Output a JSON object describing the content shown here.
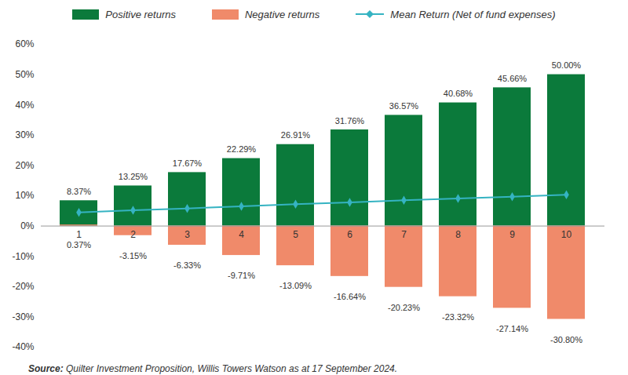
{
  "chart_data": {
    "type": "bar",
    "categories": [
      "1",
      "2",
      "3",
      "4",
      "5",
      "6",
      "7",
      "8",
      "9",
      "10"
    ],
    "series": [
      {
        "name": "Positive returns",
        "type": "bar",
        "color": "#0b7a3b",
        "values": [
          8.37,
          13.25,
          17.67,
          22.29,
          26.91,
          31.76,
          36.57,
          40.68,
          45.66,
          50.0
        ],
        "value_labels": [
          "8.37%",
          "13.25%",
          "17.67%",
          "22.29%",
          "26.91%",
          "31.76%",
          "36.57%",
          "40.68%",
          "45.66%",
          "50.00%"
        ],
        "data_labels": true
      },
      {
        "name": "Negative returns",
        "type": "bar",
        "color": "#f08a6a",
        "values": [
          0.37,
          -3.15,
          -6.33,
          -9.71,
          -13.09,
          -16.64,
          -20.23,
          -23.32,
          -27.14,
          -30.8
        ],
        "value_labels": [
          "0.37%",
          "-3.15%",
          "-6.33%",
          "-9.71%",
          "-13.09%",
          "-16.64%",
          "-20.23%",
          "-23.32%",
          "-27.14%",
          "-30.80%"
        ],
        "data_labels": true
      },
      {
        "name": "Mean Return (Net of fund expenses)",
        "type": "line",
        "color": "#35b3c2",
        "marker": "diamond",
        "values": [
          4.5,
          5.2,
          5.8,
          6.5,
          7.2,
          7.8,
          8.5,
          9.1,
          9.7,
          10.3
        ]
      }
    ],
    "ylim": [
      -40,
      60
    ],
    "yticks": [
      {
        "value": -40,
        "label": "-40%"
      },
      {
        "value": -30,
        "label": "-30%"
      },
      {
        "value": -20,
        "label": "-20%"
      },
      {
        "value": -10,
        "label": "-10%"
      },
      {
        "value": 0,
        "label": "0%"
      },
      {
        "value": 10,
        "label": "10%"
      },
      {
        "value": 20,
        "label": "20%"
      },
      {
        "value": 30,
        "label": "30%"
      },
      {
        "value": 40,
        "label": "40%"
      },
      {
        "value": 50,
        "label": "50%"
      },
      {
        "value": 60,
        "label": "60%"
      }
    ],
    "grid": false,
    "legend": "top",
    "caption": "Source: Quilter Investment Proposition, Willis Towers Watson as at 17 September 2024."
  }
}
